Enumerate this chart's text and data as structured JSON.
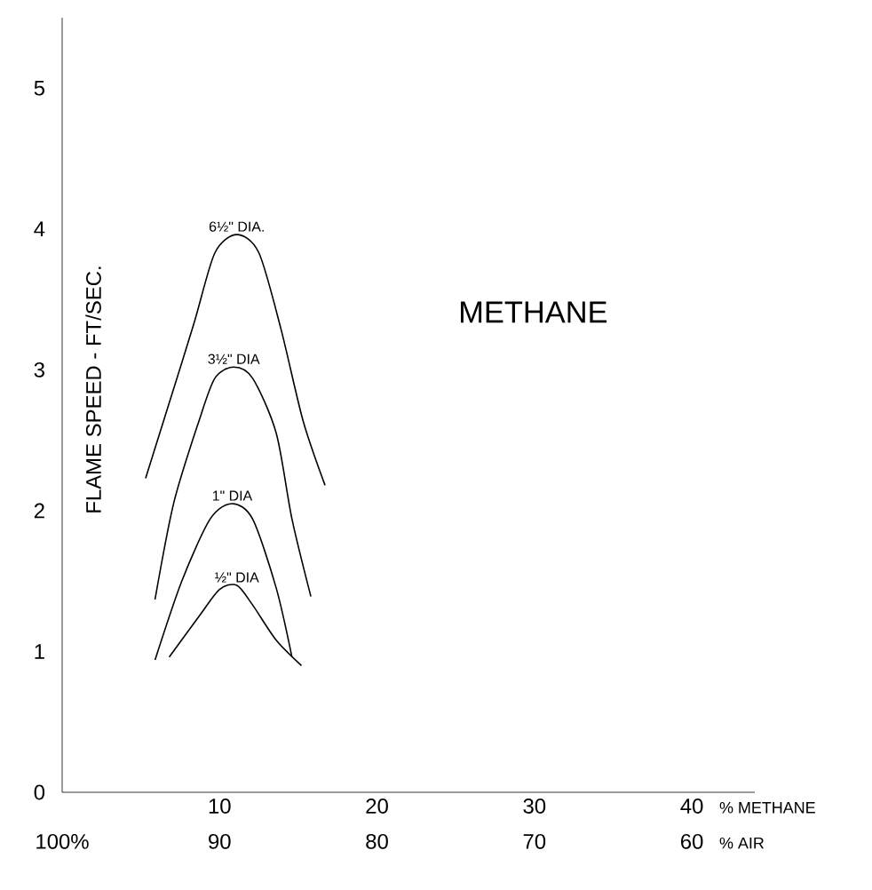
{
  "chart_data": {
    "type": "line",
    "title": "METHANE",
    "ylabel": "FLAME SPEED - FT/SEC.",
    "xlabel": "% METHANE",
    "x2label": "% AIR",
    "xlim": [
      0,
      44
    ],
    "ylim": [
      0,
      5.5
    ],
    "xticks": [
      10,
      20,
      30,
      40
    ],
    "yticks": [
      0,
      1,
      2,
      3,
      4,
      5
    ],
    "x2lim": [
      100,
      56
    ],
    "x2ticks": [
      {
        "value": 100,
        "label": "100%"
      },
      90,
      80,
      70,
      60
    ],
    "marker": "none",
    "line_style": "solid",
    "series": [
      {
        "name": "6½\" DIA.",
        "color": "#000000",
        "x": [
          5.3,
          6.9,
          8.4,
          9.7,
          11.1,
          12.5,
          13.9,
          15.3,
          16.7
        ],
        "values": [
          2.23,
          2.8,
          3.34,
          3.83,
          3.96,
          3.83,
          3.29,
          2.64,
          2.18
        ]
      },
      {
        "name": "3½\" DIA",
        "color": "#000000",
        "x": [
          5.9,
          7.1,
          8.7,
          9.7,
          10.9,
          12.1,
          13.6,
          14.6,
          15.8
        ],
        "values": [
          1.37,
          2.06,
          2.64,
          2.94,
          3.02,
          2.94,
          2.55,
          1.94,
          1.39
        ]
      },
      {
        "name": "1\" DIA",
        "color": "#000000",
        "x": [
          5.9,
          7.6,
          9.4,
          10.8,
          12.1,
          13.6,
          14.6
        ],
        "values": [
          0.94,
          1.5,
          1.94,
          2.05,
          1.94,
          1.45,
          0.96
        ]
      },
      {
        "name": "½\" DIA",
        "color": "#000000",
        "x": [
          6.8,
          8.7,
          10.0,
          11.1,
          12.1,
          13.6,
          15.2
        ],
        "values": [
          0.96,
          1.25,
          1.44,
          1.47,
          1.33,
          1.08,
          0.9
        ]
      }
    ]
  }
}
